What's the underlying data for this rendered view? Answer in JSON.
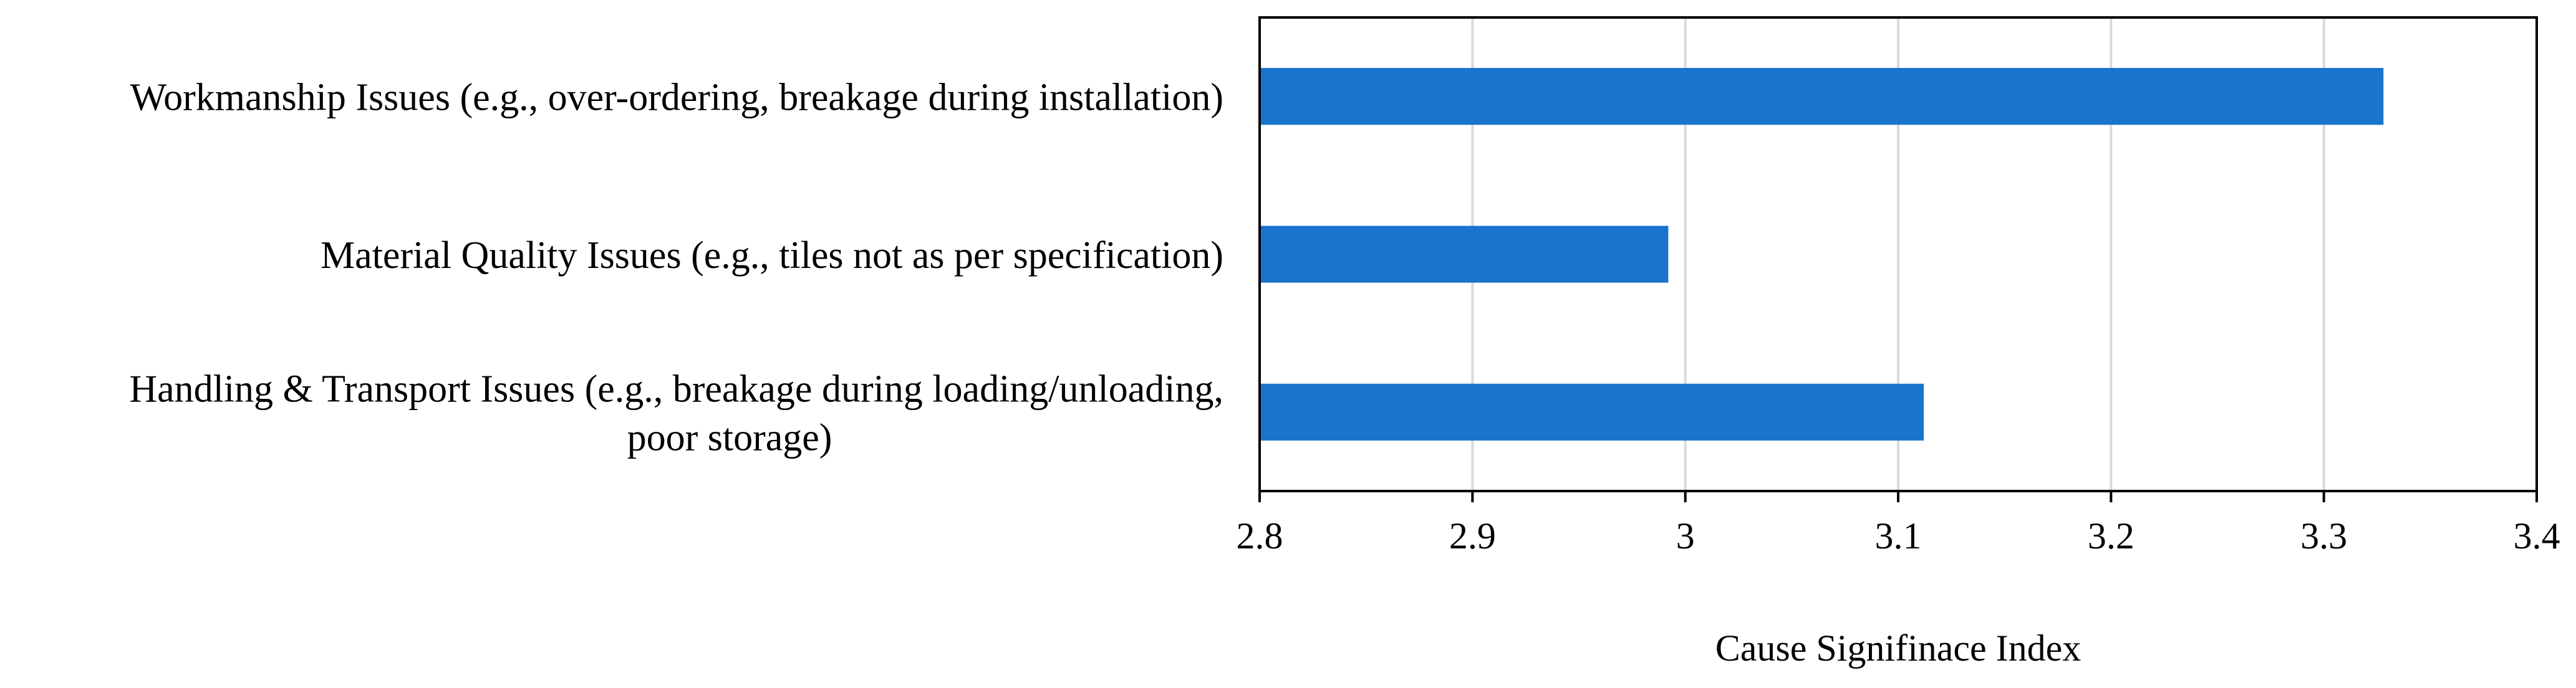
{
  "chart_data": {
    "type": "bar",
    "orientation": "horizontal",
    "categories": [
      [
        "Workmanship Issues (e.g., over-ordering, breakage during installation)"
      ],
      [
        "Material Quality Issues (e.g., tiles not as per specification)"
      ],
      [
        "Handling & Transport Issues (e.g., breakage during loading/unloading,",
        "poor storage)"
      ]
    ],
    "values": [
      3.328,
      2.992,
      3.112
    ],
    "xlim": [
      2.8,
      3.4
    ],
    "xticks": [
      "2.8",
      "2.9",
      "3",
      "3.1",
      "3.2",
      "3.3",
      "3.4"
    ],
    "xlabel": "Cause Signifinace Index",
    "ylabel": "",
    "title": "",
    "grid": "vertical",
    "legend": "none",
    "bar_color": "#1874CD",
    "grid_color": "#D9D9D9",
    "axis_color": "#000000"
  }
}
